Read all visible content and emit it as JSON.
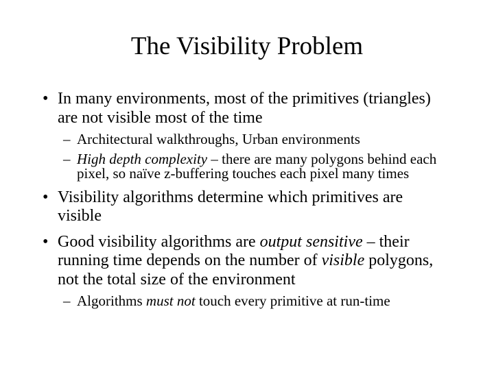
{
  "slide": {
    "background": "#ffffff",
    "text_color": "#000000",
    "title": "The Visibility Problem",
    "markers": {
      "level1": "•",
      "level2": "–"
    },
    "bullets": [
      {
        "level": 1,
        "segments": [
          {
            "t": "In many environments, most of the primitives (triangles)\nare not visible most of the time",
            "italic": false
          }
        ]
      },
      {
        "level": 2,
        "segments": [
          {
            "t": "Architectural walkthroughs, Urban environments",
            "italic": false
          }
        ]
      },
      {
        "level": 2,
        "segments": [
          {
            "t": "High depth complexity",
            "italic": true
          },
          {
            "t": " – there are many polygons behind each\npixel, so naïve z-buffering touches each pixel many times",
            "italic": false
          }
        ]
      },
      {
        "level": 1,
        "segments": [
          {
            "t": "Visibility algorithms determine which primitives are\nvisible",
            "italic": false
          }
        ]
      },
      {
        "level": 1,
        "segments": [
          {
            "t": "Good visibility algorithms are ",
            "italic": false
          },
          {
            "t": "output sensitive",
            "italic": true
          },
          {
            "t": " – their\nrunning time depends on the number of ",
            "italic": false
          },
          {
            "t": "visible",
            "italic": true
          },
          {
            "t": " polygons,\nnot the total size of the environment",
            "italic": false
          }
        ]
      },
      {
        "level": 2,
        "segments": [
          {
            "t": "Algorithms ",
            "italic": false
          },
          {
            "t": "must not",
            "italic": true
          },
          {
            "t": " touch every primitive at run-time",
            "italic": false
          }
        ]
      }
    ]
  }
}
